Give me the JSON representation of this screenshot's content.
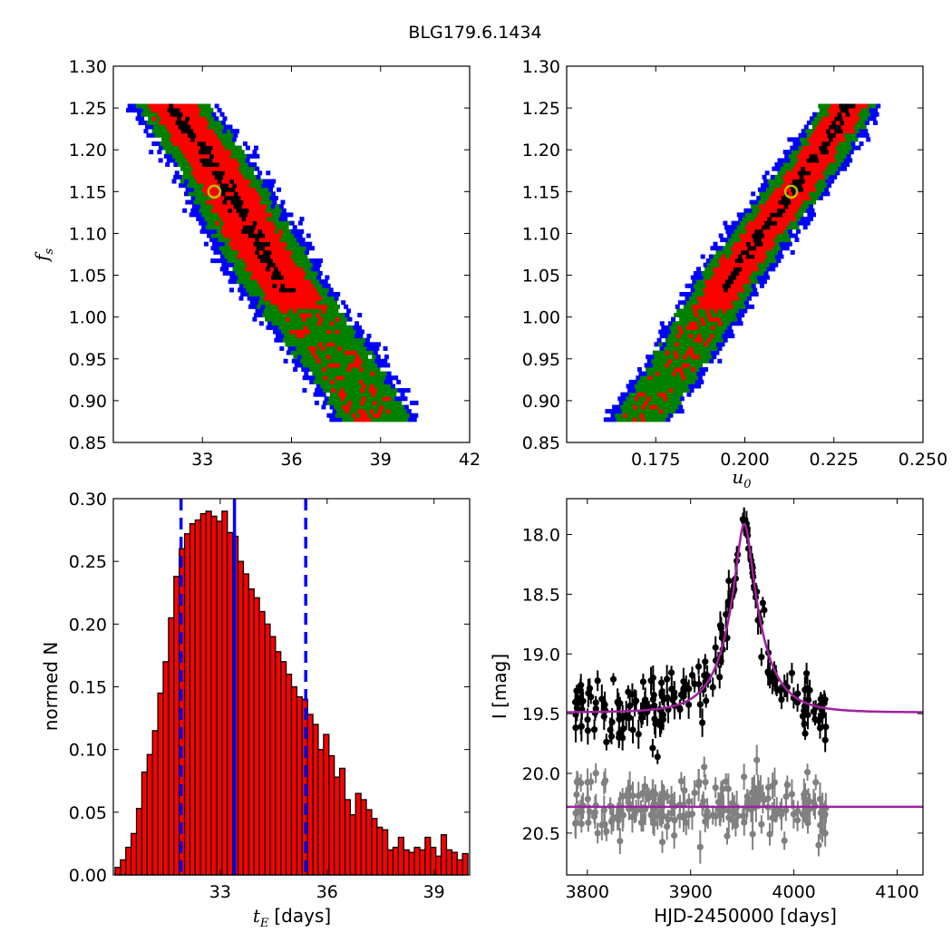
{
  "figure": {
    "title": "BLG179.6.1434"
  },
  "colors": {
    "conf_outer": "#0000ff",
    "conf_mid": "#008000",
    "conf_inner": "#ff0000",
    "conf_core": "#000000",
    "best_marker": "#bfbf00",
    "hist_fill": "#ff0000",
    "hist_edge": "#000000",
    "vline": "#0000ff",
    "model": "#a020a0",
    "data_main": "#000000",
    "data_resid": "#808080"
  },
  "chart_data": [
    {
      "id": "fs_vs_tE",
      "type": "heatmap",
      "ylabel": "f_s",
      "xlim": [
        30,
        42
      ],
      "ylim": [
        0.85,
        1.3
      ],
      "xticks": [
        33,
        36,
        39,
        42
      ],
      "xtick_labels": [
        "33",
        "36",
        "39",
        "42"
      ],
      "yticks": [
        0.85,
        0.9,
        0.95,
        1.0,
        1.05,
        1.1,
        1.15,
        1.2,
        1.25,
        1.3
      ],
      "ytick_labels": [
        "0.85",
        "0.90",
        "0.95",
        "1.00",
        "1.05",
        "1.10",
        "1.15",
        "1.20",
        "1.25",
        "1.30"
      ],
      "band": {
        "x_top": [
          31.9,
          1.255
        ],
        "x_bottom": [
          38.7,
          0.88
        ],
        "half_width": {
          "core": 0.25,
          "inner": 0.9,
          "mid": 1.35,
          "outer": 1.65
        }
      },
      "best_fit": {
        "x": 33.4,
        "y": 1.15
      }
    },
    {
      "id": "fs_vs_u0",
      "type": "heatmap",
      "xlabel": "u_0",
      "xlim": [
        0.15,
        0.25
      ],
      "ylim": [
        0.85,
        1.3
      ],
      "xticks": [
        0.175,
        0.2,
        0.225,
        0.25
      ],
      "xtick_labels": [
        "0.175",
        "0.200",
        "0.225",
        "0.250"
      ],
      "yticks": [
        0.85,
        0.9,
        0.95,
        1.0,
        1.05,
        1.1,
        1.15,
        1.2,
        1.25,
        1.3
      ],
      "ytick_labels": [
        "0.85",
        "0.90",
        "0.95",
        "1.00",
        "1.05",
        "1.10",
        "1.15",
        "1.20",
        "1.25",
        "1.30"
      ],
      "band": {
        "x_top": [
          0.2285,
          1.255
        ],
        "x_bottom": [
          0.1695,
          0.88
        ],
        "half_width": {
          "core": 0.0016,
          "inner": 0.0055,
          "mid": 0.0085,
          "outer": 0.0105
        }
      },
      "best_fit": {
        "x": 0.213,
        "y": 1.15
      }
    },
    {
      "id": "tE_hist",
      "type": "bar",
      "xlabel": "t_E [days]",
      "xlabel_unit": "[days]",
      "ylabel": "normed N",
      "xlim": [
        30,
        40
      ],
      "ylim": [
        0.0,
        0.3
      ],
      "xticks": [
        33,
        36,
        39
      ],
      "xtick_labels": [
        "33",
        "36",
        "39"
      ],
      "yticks": [
        0.0,
        0.05,
        0.1,
        0.15,
        0.2,
        0.25,
        0.3
      ],
      "ytick_labels": [
        "0.00",
        "0.05",
        "0.10",
        "0.15",
        "0.20",
        "0.25",
        "0.30"
      ],
      "bin_start": 30.05,
      "bin_width": 0.15,
      "values": [
        0.006,
        0.012,
        0.022,
        0.033,
        0.053,
        0.082,
        0.096,
        0.115,
        0.145,
        0.17,
        0.205,
        0.238,
        0.26,
        0.272,
        0.28,
        0.283,
        0.288,
        0.29,
        0.286,
        0.282,
        0.29,
        0.273,
        0.27,
        0.25,
        0.24,
        0.228,
        0.221,
        0.21,
        0.2,
        0.19,
        0.178,
        0.17,
        0.16,
        0.15,
        0.142,
        0.14,
        0.128,
        0.12,
        0.1,
        0.112,
        0.095,
        0.078,
        0.085,
        0.06,
        0.048,
        0.065,
        0.06,
        0.052,
        0.045,
        0.038,
        0.036,
        0.02,
        0.022,
        0.03,
        0.02,
        0.018,
        0.022,
        0.02,
        0.03,
        0.022,
        0.015,
        0.032,
        0.02,
        0.018,
        0.012,
        0.017,
        0.015,
        0.016,
        0.015,
        0.012,
        0.012,
        0.01,
        0.008,
        0.007,
        0.004,
        0.003
      ],
      "vlines": [
        {
          "x": 31.9,
          "style": "dashed"
        },
        {
          "x": 33.4,
          "style": "solid"
        },
        {
          "x": 35.4,
          "style": "dashed"
        }
      ]
    },
    {
      "id": "lightcurve",
      "type": "scatter",
      "xlabel": "HJD-2450000 [days]",
      "ylabel": "I [mag]",
      "xlim": [
        3780,
        4125
      ],
      "ylim": [
        20.85,
        17.7
      ],
      "xticks": [
        3800,
        3900,
        4000,
        4100
      ],
      "xtick_labels": [
        "3800",
        "3900",
        "4000",
        "4100"
      ],
      "yticks": [
        18.0,
        18.5,
        19.0,
        19.5,
        20.0,
        20.5
      ],
      "ytick_labels": [
        "18.0",
        "18.5",
        "19.0",
        "19.5",
        "20.0",
        "20.5"
      ],
      "model": {
        "t0": 3952,
        "u0": 0.213,
        "tE": 33.4,
        "baseline": 19.49,
        "resid_level": 20.28
      },
      "data_range": [
        3788,
        4032
      ],
      "n_points": 210
    }
  ]
}
